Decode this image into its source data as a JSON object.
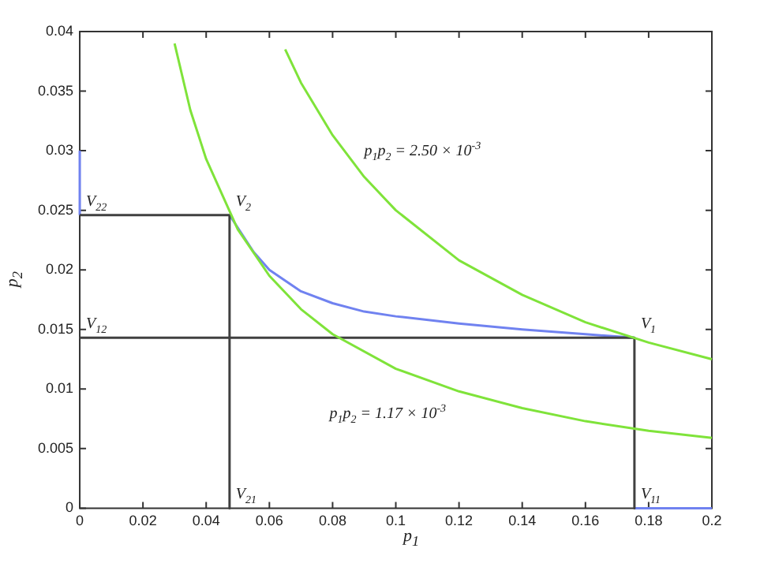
{
  "chart_data": {
    "type": "line",
    "xlabel": "p$_{1}$",
    "ylabel": "p$_{2}$",
    "xlim": [
      0,
      0.2
    ],
    "xticks": [
      0,
      0.02,
      0.04,
      0.06,
      0.08,
      0.1,
      0.12,
      0.14,
      0.16,
      0.18,
      0.2
    ],
    "ylim": [
      0,
      0.04
    ],
    "yticks": [
      0,
      0.005,
      0.01,
      0.015,
      0.02,
      0.025,
      0.03,
      0.035,
      0.04
    ],
    "grid": false,
    "legend": false,
    "marker": "none",
    "line_style": "solid",
    "series": [
      {
        "color": "#7fe33a",
        "x": [
          0.065,
          0.07,
          0.08,
          0.09,
          0.1,
          0.12,
          0.14,
          0.16,
          0.18,
          0.2
        ],
        "values": [
          0.0385,
          0.0357,
          0.0313,
          0.0278,
          0.025,
          0.0208,
          0.0179,
          0.0156,
          0.0139,
          0.0125
        ]
      },
      {
        "color": "#7fe33a",
        "x": [
          0.03,
          0.035,
          0.04,
          0.05,
          0.06,
          0.07,
          0.08,
          0.1,
          0.12,
          0.14,
          0.16,
          0.18,
          0.2
        ],
        "values": [
          0.039,
          0.0334,
          0.0293,
          0.0234,
          0.0195,
          0.0167,
          0.0146,
          0.0117,
          0.0098,
          0.0084,
          0.0073,
          0.0065,
          0.0059
        ]
      },
      {
        "color": "#404040",
        "x": [
          0,
          0.0474,
          0.0474
        ],
        "values": [
          0.0246,
          0.0246,
          0
        ]
      },
      {
        "color": "#404040",
        "x": [
          0,
          0.1755,
          0.1755
        ],
        "values": [
          0.0143,
          0.0143,
          0
        ]
      },
      {
        "color": "#7082f0",
        "x": [
          0.0474,
          0.055,
          0.06,
          0.07,
          0.08,
          0.09,
          0.1,
          0.12,
          0.14,
          0.16,
          0.1755
        ],
        "values": [
          0.0246,
          0.0215,
          0.02,
          0.0182,
          0.0172,
          0.0165,
          0.0161,
          0.0155,
          0.015,
          0.0146,
          0.0143
        ]
      },
      {
        "color": "#7082f0",
        "x": [
          0,
          0
        ],
        "values": [
          0.0246,
          0.03
        ]
      },
      {
        "color": "#7082f0",
        "x": [
          0.1755,
          0.2
        ],
        "values": [
          0,
          0
        ]
      }
    ],
    "annotations": [
      {
        "text": "V$_{22}$",
        "x": 0,
        "y": 0.0246
      },
      {
        "text": "V$_{2}$",
        "x": 0.0474,
        "y": 0.0246
      },
      {
        "text": "V$_{12}$",
        "x": 0,
        "y": 0.0143
      },
      {
        "text": "V$_{1}$",
        "x": 0.1755,
        "y": 0.0143
      },
      {
        "text": "V$_{21}$",
        "x": 0.0474,
        "y": 0
      },
      {
        "text": "V$_{11}$",
        "x": 0.1755,
        "y": 0
      },
      "p$_{1}$p$_{2}$ = 2.50 × 10$^{-3}$",
      "p$_{1}$p$_{2}$ = 1.17 × 10$^{-3}$"
    ]
  }
}
